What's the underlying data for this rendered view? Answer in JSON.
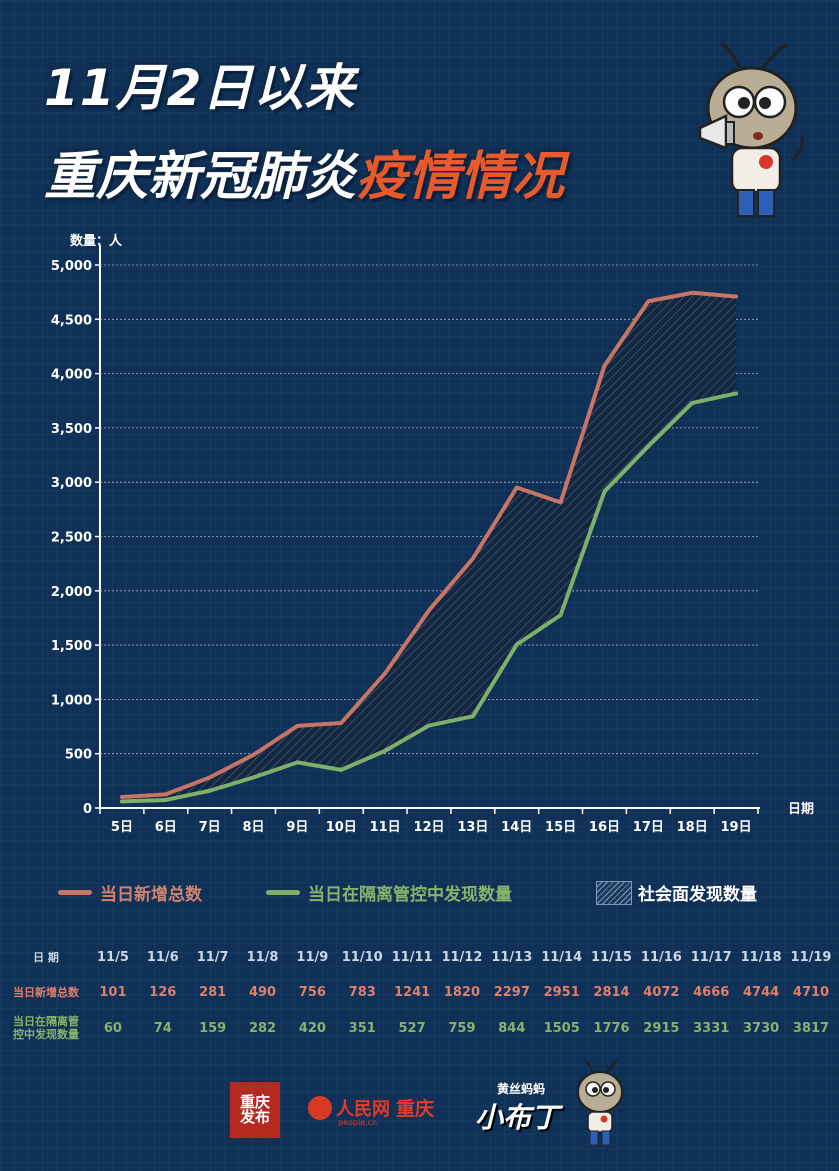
{
  "title": {
    "line1": "11月2日以来",
    "line2_part1": "重庆新冠肺炎",
    "line2_part2": "疫情情况"
  },
  "colors": {
    "total": "#c97565",
    "isolated": "#7eb06a",
    "background": "#0f3157"
  },
  "chart_data": {
    "type": "line",
    "y_unit_label": "数量：人",
    "x_axis_label": "日期",
    "categories": [
      "5日",
      "6日",
      "7日",
      "8日",
      "9日",
      "10日",
      "11日",
      "12日",
      "13日",
      "14日",
      "15日",
      "16日",
      "17日",
      "18日",
      "19日"
    ],
    "ylim": [
      0,
      5000
    ],
    "y_ticks": [
      "0",
      "500",
      "1,000",
      "1,500",
      "2,000",
      "2,500",
      "3,000",
      "3,500",
      "4,000",
      "4,500",
      "5,000"
    ],
    "y_tick_values": [
      0,
      500,
      1000,
      1500,
      2000,
      2500,
      3000,
      3500,
      4000,
      4500,
      5000
    ],
    "grid": true,
    "series": [
      {
        "name": "当日新增总数",
        "color": "#c97565",
        "values": [
          101,
          126,
          281,
          490,
          756,
          783,
          1241,
          1820,
          2297,
          2951,
          2814,
          4072,
          4666,
          4744,
          4710
        ]
      },
      {
        "name": "当日在隔离管控中发现数量",
        "color": "#7eb06a",
        "values": [
          60,
          74,
          159,
          282,
          420,
          351,
          527,
          759,
          844,
          1505,
          1776,
          2915,
          3331,
          3730,
          3817
        ]
      }
    ],
    "area_between_name": "社会面发现数量"
  },
  "legend": {
    "total": "当日新增总数",
    "isolated": "当日在隔离管控中发现数量",
    "community": "社会面发现数量"
  },
  "table": {
    "date_label": "日 期",
    "total_label": "当日新增总数",
    "iso_label_line1": "当日在隔离管",
    "iso_label_line2": "控中发现数量",
    "dates": [
      "11/5",
      "11/6",
      "11/7",
      "11/8",
      "11/9",
      "11/10",
      "11/11",
      "11/12",
      "11/13",
      "11/14",
      "11/15",
      "11/16",
      "11/17",
      "11/18",
      "11/19"
    ],
    "totals": [
      "101",
      "126",
      "281",
      "490",
      "756",
      "783",
      "1241",
      "1820",
      "2297",
      "2951",
      "2814",
      "4072",
      "4666",
      "4744",
      "4710"
    ],
    "isolated": [
      "60",
      "74",
      "159",
      "282",
      "420",
      "351",
      "527",
      "759",
      "844",
      "1505",
      "1776",
      "2915",
      "3331",
      "3730",
      "3817"
    ]
  },
  "footer": {
    "logo_cq": "重庆发布",
    "logo_rmw_name": "人民网",
    "logo_rmw_city": "重庆",
    "logo_rmw_sub": "people.cn",
    "logo_xbd_small": "黄丝蚂蚂",
    "logo_xbd_big": "小布丁"
  }
}
